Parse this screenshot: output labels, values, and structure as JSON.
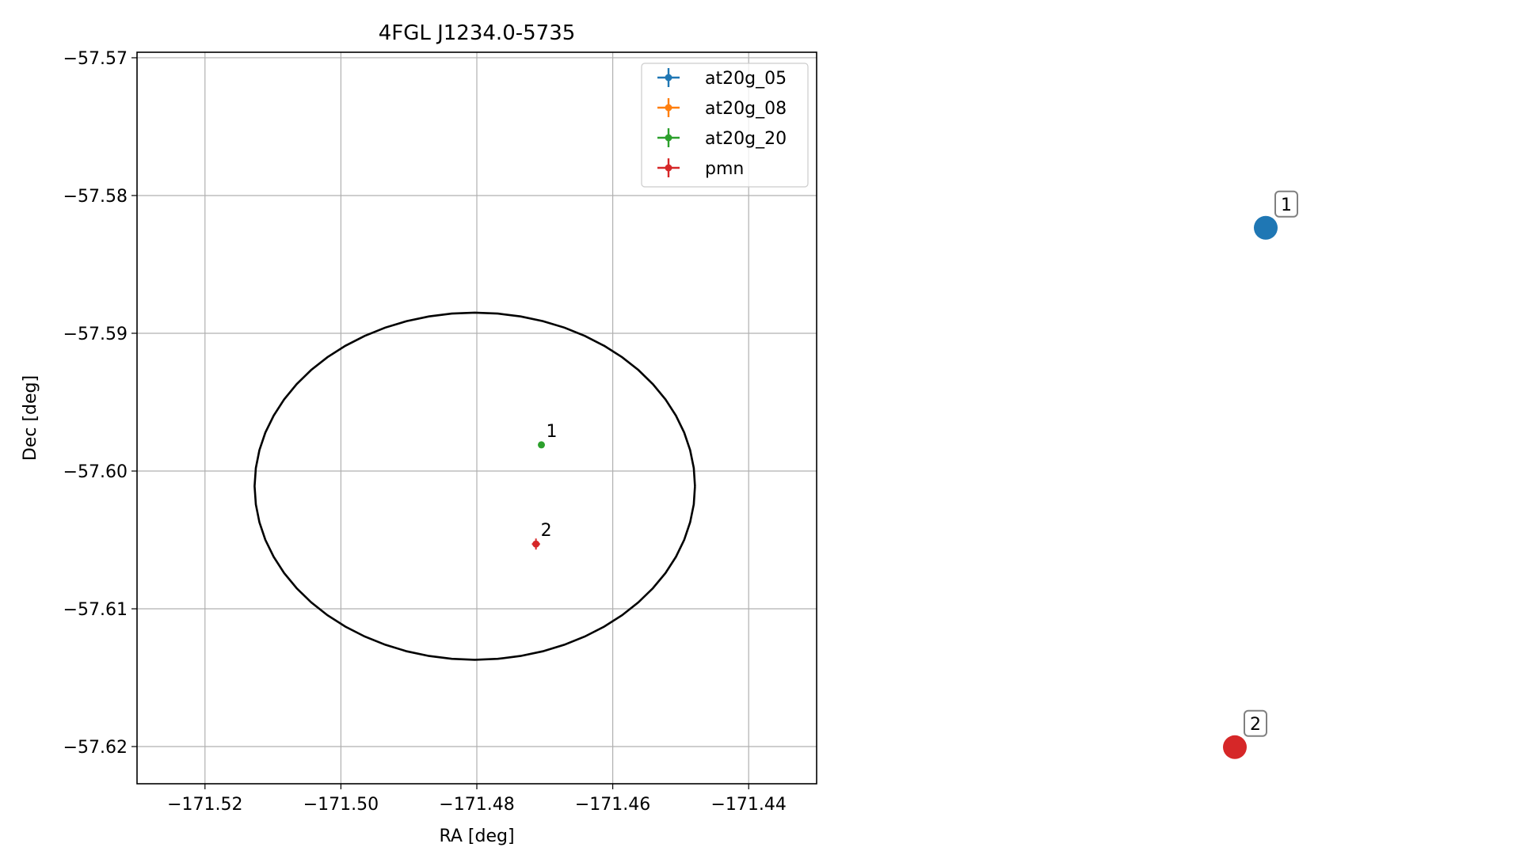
{
  "chart_data": [
    {
      "type": "scatter",
      "title": "4FGL J1234.0-5735",
      "xlabel": "RA [deg]",
      "ylabel": "Dec [deg]",
      "xlim": [
        -171.53,
        -171.43
      ],
      "ylim": [
        -57.6227,
        -57.5696
      ],
      "xticks": [
        -171.52,
        -171.5,
        -171.48,
        -171.46,
        -171.44
      ],
      "xtick_labels": [
        "−171.52",
        "−171.50",
        "−171.48",
        "−171.46",
        "−171.44"
      ],
      "yticks": [
        -57.57,
        -57.58,
        -57.59,
        -57.6,
        -57.61,
        -57.62
      ],
      "ytick_labels": [
        "−57.57",
        "−57.58",
        "−57.59",
        "−57.60",
        "−57.61",
        "−57.62"
      ],
      "grid": true,
      "legend_position": "top-right",
      "ellipse": {
        "center": [
          -171.4803,
          -57.6011
        ],
        "semi_axes": [
          0.0324,
          0.0126
        ],
        "color": "#000000"
      },
      "series": [
        {
          "name": "at20g_05",
          "color": "#1f77b4",
          "points": []
        },
        {
          "name": "at20g_08",
          "color": "#ff7f0e",
          "points": []
        },
        {
          "name": "at20g_20",
          "color": "#2ca02c",
          "points": [
            {
              "x": -171.4705,
              "y": -57.5981,
              "xerr": 0.0004,
              "yerr": 0.0002,
              "label": "1"
            }
          ]
        },
        {
          "name": "pmn",
          "color": "#d62728",
          "points": [
            {
              "x": -171.4713,
              "y": -57.6053,
              "xerr": 0.0006,
              "yerr": 0.0004,
              "label": "2"
            }
          ]
        }
      ]
    },
    {
      "type": "scatter",
      "axes_visible": false,
      "points": [
        {
          "label": "1",
          "color": "#1f77b4",
          "x": 0.72,
          "y": 0.76
        },
        {
          "label": "2",
          "color": "#d62728",
          "x": 0.66,
          "y": 0.05
        }
      ]
    }
  ]
}
